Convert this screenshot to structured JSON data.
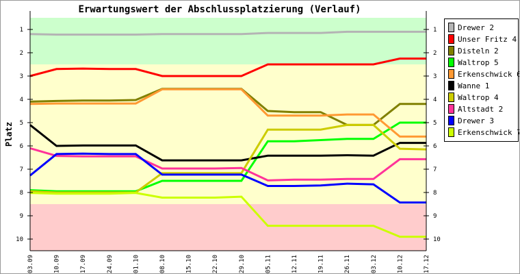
{
  "chart_data": {
    "type": "line",
    "title": "Erwartungswert der Abschlussplatzierung (Verlauf)",
    "xlabel": "",
    "ylabel": "Platz",
    "ylim": [
      0.5,
      10.5
    ],
    "y_inverted": true,
    "yticks": [
      "1",
      "2",
      "3",
      "4",
      "5",
      "6",
      "7",
      "8",
      "9",
      "10"
    ],
    "categories": [
      "03.09",
      "10.09",
      "17.09",
      "24.09",
      "01.10",
      "08.10",
      "15.10",
      "22.10",
      "29.10",
      "05.11",
      "12.11",
      "19.11",
      "26.11",
      "03.12",
      "10.12",
      "17.12"
    ],
    "zones": [
      {
        "from": 0.5,
        "to": 2.5,
        "color": "#ccffcc"
      },
      {
        "from": 2.5,
        "to": 8.5,
        "color": "#ffffcc"
      },
      {
        "from": 8.5,
        "to": 10.5,
        "color": "#ffcccc"
      }
    ],
    "legend_position": "right",
    "series": [
      {
        "name": "Drewer 2",
        "color": "#b4b4b4",
        "values": [
          1.2,
          1.22,
          1.22,
          1.22,
          1.22,
          1.2,
          1.2,
          1.2,
          1.2,
          1.15,
          1.15,
          1.15,
          1.1,
          1.1,
          1.1,
          1.1
        ]
      },
      {
        "name": "Unser Fritz 4",
        "color": "#ff0000",
        "values": [
          3.0,
          2.7,
          2.68,
          2.7,
          2.7,
          3.0,
          3.0,
          3.0,
          3.0,
          2.5,
          2.5,
          2.5,
          2.5,
          2.5,
          2.25,
          2.25
        ]
      },
      {
        "name": "Disteln 2",
        "color": "#808000",
        "values": [
          4.1,
          4.07,
          4.05,
          4.05,
          4.03,
          3.55,
          3.55,
          3.55,
          3.55,
          4.5,
          4.55,
          4.55,
          5.1,
          5.1,
          4.2,
          4.2
        ]
      },
      {
        "name": "Waltrop 5",
        "color": "#00ff00",
        "values": [
          7.9,
          7.95,
          7.95,
          7.95,
          7.95,
          7.5,
          7.5,
          7.5,
          7.5,
          5.8,
          5.8,
          5.75,
          5.7,
          5.7,
          5.0,
          5.0
        ]
      },
      {
        "name": "Erkenschwick 6",
        "color": "#ff9933",
        "values": [
          4.2,
          4.18,
          4.18,
          4.18,
          4.18,
          3.57,
          3.57,
          3.57,
          3.57,
          4.7,
          4.7,
          4.7,
          4.65,
          4.65,
          5.6,
          5.6
        ]
      },
      {
        "name": "Wanne 1",
        "color": "#000000",
        "values": [
          5.1,
          6.0,
          5.98,
          5.98,
          5.98,
          6.62,
          6.62,
          6.62,
          6.62,
          6.42,
          6.42,
          6.42,
          6.4,
          6.42,
          5.87,
          5.87
        ]
      },
      {
        "name": "Waltrop 4",
        "color": "#cccc00",
        "values": [
          7.95,
          8.0,
          8.0,
          8.0,
          8.0,
          7.17,
          7.17,
          7.17,
          7.17,
          5.3,
          5.3,
          5.3,
          5.1,
          5.1,
          6.12,
          6.15
        ]
      },
      {
        "name": "Altstadt 2",
        "color": "#ff3399",
        "values": [
          6.1,
          6.43,
          6.45,
          6.45,
          6.45,
          6.97,
          6.97,
          6.97,
          6.95,
          7.48,
          7.45,
          7.45,
          7.42,
          7.42,
          6.57,
          6.57
        ]
      },
      {
        "name": "Drewer 3",
        "color": "#0000ff",
        "values": [
          7.27,
          6.35,
          6.33,
          6.35,
          6.35,
          7.23,
          7.23,
          7.23,
          7.23,
          7.72,
          7.72,
          7.7,
          7.62,
          7.65,
          8.43,
          8.43
        ]
      },
      {
        "name": "Erkenschwick 7",
        "color": "#ccff00",
        "values": [
          8.02,
          8.05,
          8.05,
          8.05,
          8.02,
          8.22,
          8.22,
          8.22,
          8.18,
          9.43,
          9.43,
          9.43,
          9.43,
          9.43,
          9.9,
          9.9
        ]
      }
    ]
  }
}
